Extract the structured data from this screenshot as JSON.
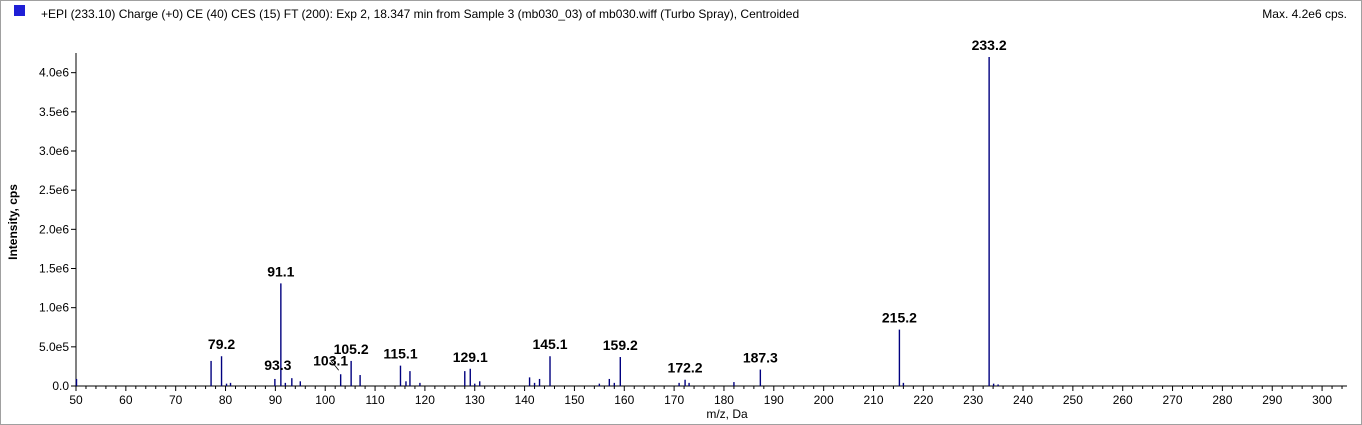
{
  "header": {
    "legend_color": "#1f1fd6",
    "title": "+EPI (233.10) Charge (+0) CE (40) CES (15) FT (200): Exp 2, 18.347 min from Sample 3 (mb030_03) of mb030.wiff (Turbo Spray), Centroided",
    "max_label": "Max. 4.2e6 cps."
  },
  "chart_data": {
    "type": "bar",
    "series_color": "#00007f",
    "xlabel": "m/z, Da",
    "ylabel": "Intensity, cps",
    "xlim": [
      50,
      305
    ],
    "ylim": [
      0,
      4200000.0
    ],
    "x_ticks": [
      50,
      60,
      70,
      80,
      90,
      100,
      110,
      120,
      130,
      140,
      150,
      160,
      170,
      180,
      190,
      200,
      210,
      220,
      230,
      240,
      250,
      260,
      270,
      280,
      290,
      300
    ],
    "y_ticks": [
      {
        "value": 0,
        "label": "0.0"
      },
      {
        "value": 500000,
        "label": "5.0e5"
      },
      {
        "value": 1000000,
        "label": "1.0e6"
      },
      {
        "value": 1500000,
        "label": "1.5e6"
      },
      {
        "value": 2000000,
        "label": "2.0e6"
      },
      {
        "value": 2500000,
        "label": "2.5e6"
      },
      {
        "value": 3000000,
        "label": "3.0e6"
      },
      {
        "value": 3500000,
        "label": "3.5e6"
      },
      {
        "value": 4000000,
        "label": "4.0e6"
      }
    ],
    "peaks": [
      {
        "mz": 50.1,
        "intensity": 90000
      },
      {
        "mz": 77.1,
        "intensity": 320000
      },
      {
        "mz": 79.2,
        "intensity": 380000
      },
      {
        "mz": 80.2,
        "intensity": 30000
      },
      {
        "mz": 81.0,
        "intensity": 40000
      },
      {
        "mz": 89.9,
        "intensity": 90000
      },
      {
        "mz": 91.1,
        "intensity": 1310000
      },
      {
        "mz": 92.0,
        "intensity": 40000
      },
      {
        "mz": 93.3,
        "intensity": 100000
      },
      {
        "mz": 95.0,
        "intensity": 60000
      },
      {
        "mz": 103.1,
        "intensity": 150000
      },
      {
        "mz": 105.2,
        "intensity": 320000
      },
      {
        "mz": 107.0,
        "intensity": 140000
      },
      {
        "mz": 115.1,
        "intensity": 260000
      },
      {
        "mz": 116.2,
        "intensity": 60000
      },
      {
        "mz": 117.0,
        "intensity": 190000
      },
      {
        "mz": 119.0,
        "intensity": 40000
      },
      {
        "mz": 128.0,
        "intensity": 190000
      },
      {
        "mz": 129.1,
        "intensity": 220000
      },
      {
        "mz": 130.0,
        "intensity": 30000
      },
      {
        "mz": 131.0,
        "intensity": 60000
      },
      {
        "mz": 141.0,
        "intensity": 110000
      },
      {
        "mz": 142.0,
        "intensity": 40000
      },
      {
        "mz": 143.0,
        "intensity": 90000
      },
      {
        "mz": 145.1,
        "intensity": 380000
      },
      {
        "mz": 155.0,
        "intensity": 30000
      },
      {
        "mz": 157.0,
        "intensity": 90000
      },
      {
        "mz": 158.0,
        "intensity": 40000
      },
      {
        "mz": 159.2,
        "intensity": 370000
      },
      {
        "mz": 171.0,
        "intensity": 40000
      },
      {
        "mz": 172.2,
        "intensity": 80000
      },
      {
        "mz": 173.0,
        "intensity": 40000
      },
      {
        "mz": 182.0,
        "intensity": 50000
      },
      {
        "mz": 187.3,
        "intensity": 210000
      },
      {
        "mz": 215.2,
        "intensity": 720000
      },
      {
        "mz": 216.0,
        "intensity": 40000
      },
      {
        "mz": 233.2,
        "intensity": 4200000
      },
      {
        "mz": 234.1,
        "intensity": 30000
      },
      {
        "mz": 235.0,
        "intensity": 20000
      }
    ],
    "annotations": [
      {
        "label": "79.2",
        "mz": 79.2,
        "intensity": 380000
      },
      {
        "label": "91.1",
        "mz": 91.1,
        "intensity": 1310000
      },
      {
        "label": "93.3",
        "mz": 93.3,
        "intensity": 100000
      },
      {
        "label": "103.1",
        "mz": 103.1,
        "intensity": 150000
      },
      {
        "label": "105.2",
        "mz": 105.2,
        "intensity": 320000
      },
      {
        "label": "115.1",
        "mz": 115.1,
        "intensity": 260000
      },
      {
        "label": "129.1",
        "mz": 129.1,
        "intensity": 220000
      },
      {
        "label": "145.1",
        "mz": 145.1,
        "intensity": 380000
      },
      {
        "label": "159.2",
        "mz": 159.2,
        "intensity": 370000
      },
      {
        "label": "172.2",
        "mz": 172.2,
        "intensity": 80000
      },
      {
        "label": "187.3",
        "mz": 187.3,
        "intensity": 210000
      },
      {
        "label": "215.2",
        "mz": 215.2,
        "intensity": 720000
      },
      {
        "label": "233.2",
        "mz": 233.2,
        "intensity": 4200000
      }
    ]
  }
}
